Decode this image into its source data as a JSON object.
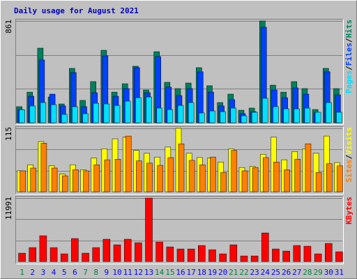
{
  "chart_data": [
    {
      "type": "bar",
      "title": "Daily usage for August 2021",
      "ylim": [
        0,
        861
      ],
      "yticks": [
        861
      ],
      "legend_separator": "/",
      "series": [
        {
          "name": "Hits",
          "color": "#00805c",
          "values": [
            136,
            259,
            631,
            218,
            159,
            460,
            189,
            348,
            613,
            259,
            330,
            478,
            277,
            601,
            342,
            289,
            336,
            466,
            313,
            171,
            242,
            106,
            124,
            861,
            318,
            259,
            348,
            289,
            112,
            460,
            289
          ]
        },
        {
          "name": "Files",
          "color": "#0040ff",
          "values": [
            112,
            224,
            531,
            242,
            142,
            425,
            136,
            254,
            566,
            224,
            289,
            466,
            254,
            560,
            301,
            230,
            289,
            431,
            259,
            142,
            195,
            77,
            94,
            808,
            277,
            212,
            295,
            242,
            83,
            431,
            236
          ]
        },
        {
          "name": "Pages",
          "color": "#00e0ff",
          "values": [
            110,
            142,
            171,
            153,
            71,
            136,
            77,
            165,
            159,
            147,
            183,
            212,
            218,
            124,
            112,
            147,
            171,
            83,
            100,
            94,
            124,
            59,
            89,
            207,
            136,
            118,
            118,
            124,
            89,
            171,
            89
          ]
        }
      ]
    },
    {
      "type": "bar",
      "ylim": [
        0,
        115
      ],
      "yticks": [
        115
      ],
      "legend_separator": "/",
      "series": [
        {
          "name": "Visits",
          "color": "#ffff00",
          "values": [
            38,
            49,
            91,
            47,
            32,
            49,
            40,
            61,
            78,
            96,
            99,
            75,
            70,
            63,
            81,
            115,
            70,
            62,
            61,
            54,
            78,
            44,
            46,
            68,
            99,
            58,
            73,
            78,
            70,
            101,
            53
          ]
        },
        {
          "name": "Sites",
          "color": "#ff8000",
          "values": [
            38,
            43,
            88,
            43,
            29,
            40,
            38,
            49,
            58,
            59,
            101,
            56,
            52,
            48,
            62,
            87,
            57,
            49,
            63,
            35,
            75,
            38,
            44,
            62,
            54,
            40,
            59,
            87,
            35,
            51,
            47
          ]
        }
      ]
    },
    {
      "type": "bar",
      "ylim": [
        0,
        11991
      ],
      "yticks": [
        11991
      ],
      "categories": [
        "1",
        "2",
        "3",
        "4",
        "5",
        "6",
        "7",
        "8",
        "9",
        "10",
        "11",
        "12",
        "13",
        "14",
        "15",
        "16",
        "17",
        "18",
        "19",
        "20",
        "21",
        "22",
        "23",
        "24",
        "25",
        "26",
        "27",
        "28",
        "29",
        "30",
        "31"
      ],
      "category_colors": [
        "#008040",
        "#0000ff",
        "#0000ff",
        "#0000ff",
        "#0000ff",
        "#0000ff",
        "#008040",
        "#008040",
        "#0000ff",
        "#0000ff",
        "#0000ff",
        "#0000ff",
        "#0000ff",
        "#008040",
        "#008040",
        "#0000ff",
        "#0000ff",
        "#0000ff",
        "#0000ff",
        "#0000ff",
        "#008040",
        "#008040",
        "#0000ff",
        "#0000ff",
        "#0000ff",
        "#0000ff",
        "#0000ff",
        "#008040",
        "#008040",
        "#0000ff",
        "#0000ff"
      ],
      "series": [
        {
          "name": "KBytes",
          "color": "#ff0000",
          "values": [
            1581,
            2635,
            4876,
            2635,
            1450,
            4348,
            1581,
            2635,
            4217,
            3162,
            4217,
            3558,
            11991,
            3690,
            2767,
            2372,
            2372,
            3031,
            2240,
            1450,
            3162,
            1054,
            1054,
            5402,
            2372,
            1977,
            3031,
            2899,
            1450,
            3426,
            1845
          ]
        }
      ]
    }
  ]
}
